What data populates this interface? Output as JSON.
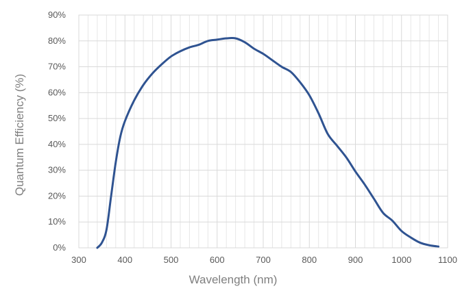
{
  "chart_data": {
    "type": "line",
    "xlabel": "Wavelength (nm)",
    "ylabel": "Quantum Efficiency (%)",
    "xlim": [
      300,
      1100
    ],
    "ylim": [
      0,
      90
    ],
    "x_ticks": [
      "300",
      "400",
      "500",
      "600",
      "700",
      "800",
      "900",
      "1000",
      "1100"
    ],
    "y_ticks": [
      "0%",
      "10%",
      "20%",
      "30%",
      "40%",
      "50%",
      "60%",
      "70%",
      "80%",
      "90%"
    ],
    "x_minor_step": 20,
    "grid": true,
    "legend": "none",
    "series": [
      {
        "color": "#2f5391",
        "x": [
          340,
          350,
          360,
          370,
          380,
          390,
          400,
          420,
          440,
          460,
          480,
          500,
          520,
          540,
          560,
          580,
          600,
          620,
          640,
          660,
          680,
          700,
          720,
          740,
          760,
          780,
          800,
          820,
          840,
          860,
          880,
          900,
          920,
          940,
          960,
          980,
          1000,
          1020,
          1040,
          1060,
          1080
        ],
        "y": [
          0,
          2,
          7,
          20,
          33,
          43,
          49,
          57,
          63,
          67.5,
          71,
          74,
          76,
          77.5,
          78.5,
          80,
          80.5,
          81,
          81,
          79.5,
          77,
          75,
          72.5,
          70,
          68,
          64,
          59,
          52,
          44,
          39.5,
          35,
          29.5,
          24.5,
          19,
          13.5,
          10.5,
          6.5,
          4,
          2,
          1,
          0.5
        ]
      }
    ]
  }
}
